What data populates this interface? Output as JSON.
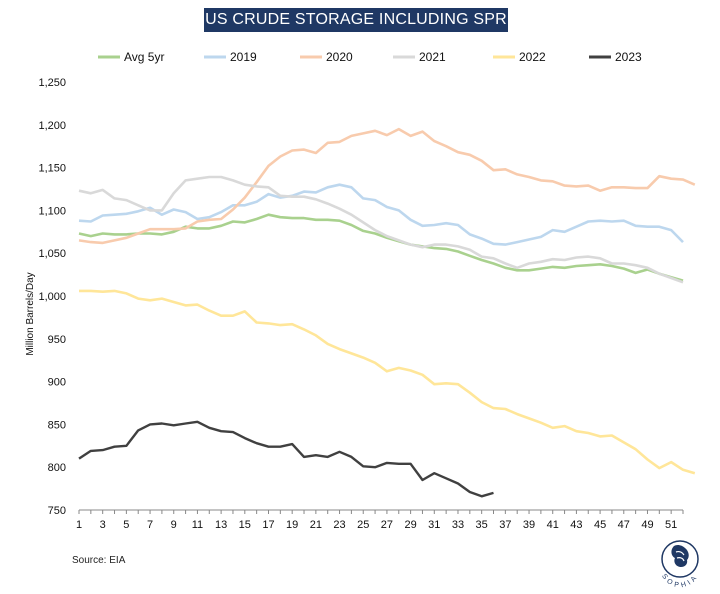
{
  "source_text": "Source: EIA",
  "logo_text": "SOPHIA",
  "colors": {
    "title_bg": "#1f3864",
    "Avg 5yr": "#a9d18e",
    "2019": "#bdd7ee",
    "2020": "#f8cbad",
    "2021": "#d9d9d9",
    "2022": "#ffe699",
    "2023": "#404040"
  },
  "chart_data": {
    "type": "line",
    "title": "US CRUDE STORAGE INCLUDING SPR",
    "xlabel": "",
    "ylabel": "Million Barrels/Day",
    "ylim": [
      750,
      1250
    ],
    "yticks": [
      "750",
      "800",
      "850",
      "900",
      "950",
      "1,000",
      "1,050",
      "1,100",
      "1,150",
      "1,200",
      "1,250"
    ],
    "ytick_values": [
      750,
      800,
      850,
      900,
      950,
      1000,
      1050,
      1100,
      1150,
      1200,
      1250
    ],
    "xlim": [
      1,
      52
    ],
    "xticks": [
      "1",
      "3",
      "5",
      "7",
      "9",
      "11",
      "13",
      "15",
      "17",
      "19",
      "21",
      "23",
      "25",
      "27",
      "29",
      "31",
      "33",
      "35",
      "37",
      "39",
      "41",
      "43",
      "45",
      "47",
      "49",
      "51"
    ],
    "xtick_values": [
      1,
      3,
      5,
      7,
      9,
      11,
      13,
      15,
      17,
      19,
      21,
      23,
      25,
      27,
      29,
      31,
      33,
      35,
      37,
      39,
      41,
      43,
      45,
      47,
      49,
      51
    ],
    "legend_position": "top",
    "grid": false,
    "series": [
      {
        "name": "Avg 5yr",
        "values": [
          1073,
          1070,
          1073,
          1072,
          1072,
          1073,
          1073,
          1072,
          1075,
          1081,
          1079,
          1079,
          1082,
          1087,
          1086,
          1090,
          1095,
          1092,
          1091,
          1091,
          1089,
          1089,
          1088,
          1083,
          1076,
          1073,
          1068,
          1064,
          1060,
          1058,
          1056,
          1055,
          1052,
          1047,
          1042,
          1038,
          1033,
          1030,
          1030,
          1032,
          1034,
          1033,
          1035,
          1036,
          1037,
          1035,
          1032,
          1027,
          1031,
          1026,
          1022,
          1018
        ]
      },
      {
        "name": "2019",
        "values": [
          1088,
          1087,
          1094,
          1095,
          1096,
          1099,
          1103,
          1095,
          1101,
          1098,
          1090,
          1092,
          1098,
          1106,
          1106,
          1110,
          1119,
          1115,
          1117,
          1122,
          1121,
          1127,
          1130,
          1127,
          1114,
          1112,
          1104,
          1100,
          1089,
          1082,
          1083,
          1085,
          1083,
          1072,
          1067,
          1061,
          1060,
          1063,
          1066,
          1069,
          1077,
          1075,
          1081,
          1087,
          1088,
          1087,
          1088,
          1082,
          1081,
          1081,
          1077,
          1063
        ]
      },
      {
        "name": "2020",
        "values": [
          1065,
          1063,
          1062,
          1065,
          1068,
          1073,
          1078,
          1078,
          1078,
          1079,
          1087,
          1089,
          1090,
          1101,
          1115,
          1133,
          1152,
          1163,
          1170,
          1171,
          1167,
          1179,
          1180,
          1187,
          1190,
          1193,
          1188,
          1195,
          1187,
          1192,
          1181,
          1175,
          1168,
          1165,
          1158,
          1147,
          1148,
          1142,
          1139,
          1135,
          1134,
          1129,
          1128,
          1129,
          1123,
          1127,
          1127,
          1126,
          1126,
          1140,
          1137,
          1136,
          1130
        ]
      },
      {
        "name": "2021",
        "values": [
          1123,
          1120,
          1124,
          1114,
          1112,
          1106,
          1100,
          1100,
          1120,
          1135,
          1137,
          1139,
          1139,
          1135,
          1130,
          1128,
          1127,
          1117,
          1116,
          1116,
          1113,
          1108,
          1102,
          1095,
          1086,
          1077,
          1070,
          1065,
          1060,
          1057,
          1060,
          1060,
          1058,
          1054,
          1046,
          1044,
          1038,
          1033,
          1038,
          1040,
          1043,
          1042,
          1045,
          1046,
          1044,
          1038,
          1038,
          1036,
          1033,
          1026,
          1021,
          1016
        ]
      },
      {
        "name": "2022",
        "values": [
          1006,
          1006,
          1005,
          1006,
          1003,
          997,
          995,
          997,
          993,
          989,
          990,
          983,
          977,
          977,
          982,
          969,
          968,
          966,
          967,
          961,
          954,
          944,
          938,
          933,
          928,
          922,
          912,
          916,
          913,
          908,
          897,
          898,
          897,
          887,
          876,
          869,
          868,
          862,
          857,
          852,
          846,
          848,
          842,
          840,
          836,
          837,
          829,
          821,
          809,
          799,
          806,
          797,
          793
        ]
      },
      {
        "name": "2023",
        "values": [
          810,
          819,
          820,
          824,
          825,
          843,
          850,
          851,
          849,
          851,
          853,
          846,
          842,
          841,
          834,
          828,
          824,
          824,
          827,
          812,
          814,
          812,
          818,
          812,
          801,
          800,
          805,
          804,
          804,
          785,
          793,
          787,
          781,
          771,
          766,
          770
        ]
      }
    ]
  }
}
